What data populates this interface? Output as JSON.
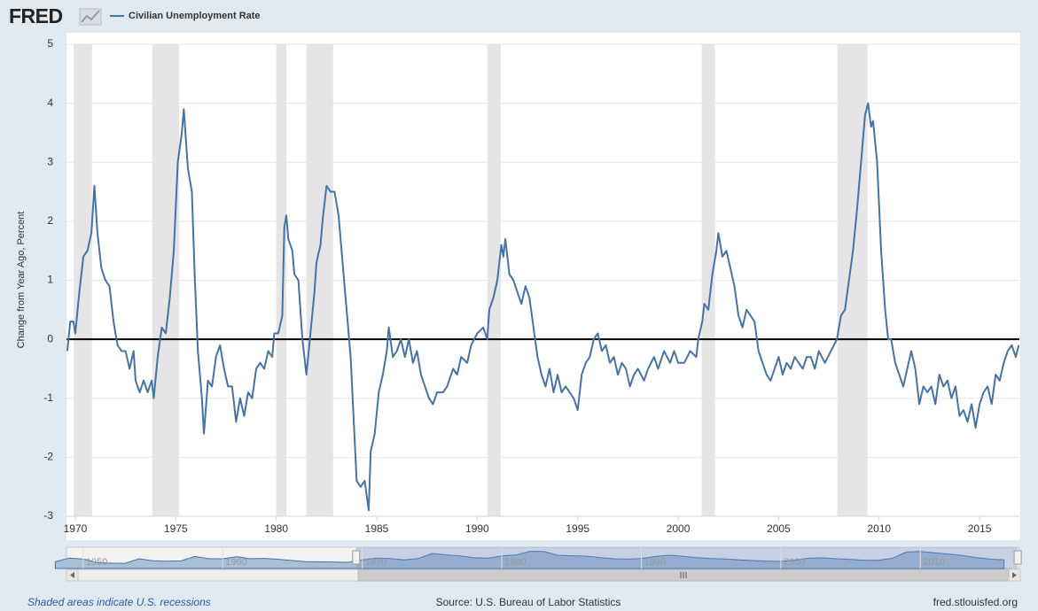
{
  "logo": "FRED",
  "chart_data": {
    "type": "line",
    "y_label": "Change from Year Ago, Percent",
    "x": [
      1969.6,
      1969.75,
      1969.9,
      1970.0,
      1970.2,
      1970.4,
      1970.6,
      1970.8,
      1970.95,
      1971.1,
      1971.3,
      1971.5,
      1971.7,
      1971.9,
      1972.1,
      1972.3,
      1972.5,
      1972.7,
      1972.9,
      1973.0,
      1973.2,
      1973.4,
      1973.6,
      1973.8,
      1973.9,
      1974.1,
      1974.3,
      1974.5,
      1974.7,
      1974.9,
      1975.1,
      1975.3,
      1975.4,
      1975.6,
      1975.8,
      1975.95,
      1976.1,
      1976.3,
      1976.4,
      1976.6,
      1976.8,
      1977.0,
      1977.2,
      1977.4,
      1977.6,
      1977.8,
      1978.0,
      1978.2,
      1978.4,
      1978.6,
      1978.8,
      1979.0,
      1979.2,
      1979.4,
      1979.6,
      1979.8,
      1979.9,
      1980.1,
      1980.3,
      1980.4,
      1980.5,
      1980.6,
      1980.8,
      1980.9,
      1981.1,
      1981.3,
      1981.5,
      1981.7,
      1981.9,
      1982.0,
      1982.2,
      1982.3,
      1982.5,
      1982.7,
      1982.9,
      1983.1,
      1983.3,
      1983.5,
      1983.7,
      1983.8,
      1984.0,
      1984.2,
      1984.4,
      1984.6,
      1984.7,
      1984.9,
      1985.1,
      1985.3,
      1985.5,
      1985.6,
      1985.8,
      1986.0,
      1986.2,
      1986.4,
      1986.6,
      1986.8,
      1987.0,
      1987.2,
      1987.4,
      1987.6,
      1987.8,
      1988.0,
      1988.3,
      1988.5,
      1988.8,
      1989.0,
      1989.2,
      1989.5,
      1989.7,
      1990.0,
      1990.3,
      1990.5,
      1990.6,
      1990.8,
      1991.0,
      1991.2,
      1991.3,
      1991.4,
      1991.6,
      1991.8,
      1992.0,
      1992.2,
      1992.4,
      1992.6,
      1992.8,
      1993.0,
      1993.2,
      1993.4,
      1993.6,
      1993.8,
      1994.0,
      1994.2,
      1994.4,
      1994.6,
      1994.8,
      1995.0,
      1995.2,
      1995.4,
      1995.6,
      1995.8,
      1996.0,
      1996.2,
      1996.4,
      1996.6,
      1996.8,
      1997.0,
      1997.2,
      1997.4,
      1997.6,
      1997.8,
      1998.0,
      1998.3,
      1998.5,
      1998.8,
      1999.0,
      1999.3,
      1999.6,
      1999.8,
      2000.0,
      2000.3,
      2000.6,
      2000.9,
      2001.0,
      2001.2,
      2001.3,
      2001.5,
      2001.7,
      2001.9,
      2002.0,
      2002.2,
      2002.4,
      2002.6,
      2002.8,
      2003.0,
      2003.2,
      2003.4,
      2003.6,
      2003.8,
      2004.0,
      2004.2,
      2004.4,
      2004.6,
      2004.8,
      2005.0,
      2005.2,
      2005.4,
      2005.6,
      2005.8,
      2006.0,
      2006.2,
      2006.4,
      2006.6,
      2006.8,
      2007.0,
      2007.3,
      2007.6,
      2007.9,
      2008.1,
      2008.3,
      2008.5,
      2008.7,
      2008.9,
      2009.1,
      2009.3,
      2009.45,
      2009.6,
      2009.7,
      2009.9,
      2010.1,
      2010.3,
      2010.45,
      2010.6,
      2010.8,
      2011.0,
      2011.2,
      2011.4,
      2011.6,
      2011.8,
      2012.0,
      2012.2,
      2012.4,
      2012.6,
      2012.8,
      2013.0,
      2013.2,
      2013.4,
      2013.6,
      2013.8,
      2014.0,
      2014.2,
      2014.4,
      2014.6,
      2014.8,
      2015.0,
      2015.2,
      2015.4,
      2015.6,
      2015.8,
      2016.0,
      2016.2,
      2016.4,
      2016.6,
      2016.8,
      2016.95
    ],
    "series": [
      {
        "name": "Civilian Unemployment Rate",
        "color": "#4572a7",
        "values": [
          -0.2,
          0.3,
          0.3,
          0.1,
          0.8,
          1.4,
          1.5,
          1.8,
          2.6,
          1.8,
          1.2,
          1.0,
          0.9,
          0.3,
          -0.1,
          -0.2,
          -0.2,
          -0.5,
          -0.2,
          -0.7,
          -0.9,
          -0.7,
          -0.9,
          -0.7,
          -1.0,
          -0.3,
          0.2,
          0.1,
          0.7,
          1.5,
          3.0,
          3.5,
          3.9,
          2.9,
          2.5,
          1.0,
          -0.2,
          -1.0,
          -1.6,
          -0.7,
          -0.8,
          -0.3,
          -0.1,
          -0.5,
          -0.8,
          -0.8,
          -1.4,
          -1.0,
          -1.3,
          -0.9,
          -1.0,
          -0.5,
          -0.4,
          -0.5,
          -0.2,
          -0.3,
          0.1,
          0.1,
          0.4,
          1.9,
          2.1,
          1.7,
          1.5,
          1.1,
          1.0,
          0.0,
          -0.6,
          0.1,
          0.8,
          1.3,
          1.6,
          2.0,
          2.6,
          2.5,
          2.5,
          2.1,
          1.3,
          0.5,
          -0.3,
          -1.0,
          -2.4,
          -2.5,
          -2.4,
          -2.9,
          -1.9,
          -1.6,
          -0.9,
          -0.6,
          -0.2,
          0.2,
          -0.3,
          -0.2,
          0.0,
          -0.3,
          0.0,
          -0.4,
          -0.2,
          -0.6,
          -0.8,
          -1.0,
          -1.1,
          -0.9,
          -0.9,
          -0.8,
          -0.5,
          -0.6,
          -0.3,
          -0.4,
          -0.1,
          0.1,
          0.2,
          0.0,
          0.5,
          0.7,
          1.0,
          1.6,
          1.4,
          1.7,
          1.1,
          1.0,
          0.8,
          0.6,
          0.9,
          0.7,
          0.2,
          -0.3,
          -0.6,
          -0.8,
          -0.5,
          -0.9,
          -0.6,
          -0.9,
          -0.8,
          -0.9,
          -1.0,
          -1.2,
          -0.6,
          -0.4,
          -0.3,
          0.0,
          0.1,
          -0.2,
          -0.1,
          -0.4,
          -0.3,
          -0.6,
          -0.4,
          -0.5,
          -0.8,
          -0.6,
          -0.5,
          -0.7,
          -0.5,
          -0.3,
          -0.5,
          -0.2,
          -0.4,
          -0.2,
          -0.4,
          -0.4,
          -0.2,
          -0.3,
          0.0,
          0.3,
          0.6,
          0.5,
          1.1,
          1.5,
          1.8,
          1.4,
          1.5,
          1.2,
          0.9,
          0.4,
          0.2,
          0.5,
          0.4,
          0.3,
          -0.2,
          -0.4,
          -0.6,
          -0.7,
          -0.5,
          -0.3,
          -0.6,
          -0.4,
          -0.5,
          -0.3,
          -0.4,
          -0.5,
          -0.3,
          -0.3,
          -0.5,
          -0.2,
          -0.4,
          -0.2,
          0.0,
          0.4,
          0.5,
          1.0,
          1.5,
          2.2,
          3.0,
          3.8,
          4.0,
          3.6,
          3.7,
          3.0,
          1.5,
          0.5,
          0.0,
          0.0,
          -0.4,
          -0.6,
          -0.8,
          -0.5,
          -0.2,
          -0.5,
          -1.1,
          -0.8,
          -0.9,
          -0.8,
          -1.1,
          -0.6,
          -0.8,
          -0.7,
          -1.0,
          -0.8,
          -1.3,
          -1.2,
          -1.4,
          -1.1,
          -1.5,
          -1.1,
          -0.9,
          -0.8,
          -1.1,
          -0.6,
          -0.7,
          -0.4,
          -0.2,
          -0.1,
          -0.3,
          -0.1
        ]
      }
    ],
    "xlim": [
      1969.56,
      2016.98
    ],
    "xticks": [
      1970,
      1975,
      1980,
      1985,
      1990,
      1995,
      2000,
      2005,
      2010,
      2015
    ],
    "ylim": [
      -3,
      5
    ],
    "yticks": [
      -3,
      -2,
      -1,
      0,
      1,
      2,
      3,
      4,
      5
    ],
    "grid": true,
    "zero_line_color": "#000000",
    "recession_color": "#e5e5e5",
    "recessions": [
      {
        "start": 1969.92,
        "end": 1970.83
      },
      {
        "start": 1973.83,
        "end": 1975.17
      },
      {
        "start": 1980.0,
        "end": 1980.5
      },
      {
        "start": 1981.5,
        "end": 1982.83
      },
      {
        "start": 1990.5,
        "end": 1991.17
      },
      {
        "start": 2001.17,
        "end": 2001.83
      },
      {
        "start": 2007.92,
        "end": 2009.42
      }
    ],
    "navigator": {
      "x": [
        1948,
        1949,
        1950,
        1951,
        1952,
        1953,
        1954,
        1955,
        1956,
        1957,
        1958,
        1959,
        1960,
        1961,
        1962,
        1963,
        1964,
        1965,
        1966,
        1967,
        1968,
        1969,
        1970,
        1971,
        1972,
        1973,
        1974,
        1975,
        1976,
        1977,
        1978,
        1979,
        1980,
        1981,
        1982,
        1983,
        1984,
        1985,
        1986,
        1987,
        1988,
        1989,
        1990,
        1991,
        1992,
        1993,
        1994,
        1995,
        1996,
        1997,
        1998,
        1999,
        2000,
        2001,
        2002,
        2003,
        2004,
        2005,
        2006,
        2007,
        2008,
        2009,
        2010,
        2011,
        2012,
        2013,
        2014,
        2015,
        2016
      ],
      "values": [
        3.8,
        5.9,
        5.3,
        3.3,
        3.0,
        2.9,
        5.5,
        4.4,
        4.1,
        4.3,
        6.8,
        5.5,
        5.5,
        6.7,
        5.5,
        5.7,
        5.2,
        4.5,
        3.8,
        3.8,
        3.6,
        3.5,
        4.9,
        5.9,
        5.6,
        4.9,
        5.6,
        8.5,
        7.7,
        7.1,
        6.1,
        5.8,
        7.1,
        7.6,
        9.7,
        9.6,
        7.5,
        7.2,
        7.0,
        6.2,
        5.5,
        5.3,
        5.6,
        6.8,
        7.5,
        6.9,
        6.1,
        5.6,
        5.4,
        4.9,
        4.5,
        4.2,
        4.0,
        4.7,
        5.8,
        6.0,
        5.5,
        5.1,
        4.6,
        4.6,
        5.8,
        9.3,
        9.6,
        8.9,
        8.1,
        7.4,
        6.2,
        5.3,
        4.9
      ],
      "xlim": [
        1948.8,
        2017.1
      ],
      "ylim": [
        0,
        12
      ],
      "xticks": [
        1950,
        1960,
        1970,
        1980,
        1990,
        2000,
        2010
      ]
    }
  },
  "footer": {
    "note": "Shaded areas indicate U.S. recessions",
    "source": "Source: U.S. Bureau of Labor Statistics",
    "site": "fred.stlouisfed.org"
  }
}
